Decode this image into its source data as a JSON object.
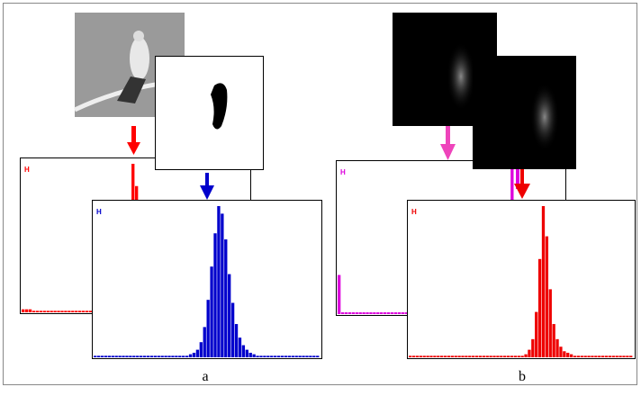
{
  "panels": [
    {
      "caption": "a",
      "histograms": [
        {
          "label": "H",
          "color": "#ff0000",
          "values": [
            2,
            2,
            2,
            1,
            1,
            1,
            1,
            1,
            1,
            1,
            1,
            1,
            1,
            1,
            1,
            1,
            1,
            1,
            1,
            1,
            1,
            1,
            1,
            1,
            2,
            3,
            5,
            10,
            20,
            35,
            70,
            100,
            85,
            50,
            25,
            12,
            6,
            3,
            2,
            1,
            1,
            1,
            1,
            1,
            1,
            1,
            1,
            1,
            1,
            1,
            1,
            1,
            1,
            1,
            1,
            1,
            1,
            1,
            1,
            1,
            1,
            1,
            1,
            1
          ]
        },
        {
          "label": "H",
          "color": "#0000cc",
          "values": [
            1,
            1,
            1,
            1,
            1,
            1,
            1,
            1,
            1,
            1,
            1,
            1,
            1,
            1,
            1,
            1,
            1,
            1,
            1,
            1,
            1,
            1,
            1,
            1,
            1,
            1,
            1,
            2,
            3,
            5,
            10,
            20,
            38,
            60,
            82,
            100,
            95,
            78,
            55,
            36,
            22,
            13,
            8,
            5,
            3,
            2,
            1,
            1,
            1,
            1,
            1,
            1,
            1,
            1,
            1,
            1,
            1,
            1,
            1,
            1,
            1,
            1,
            1,
            1
          ]
        }
      ]
    },
    {
      "caption": "b",
      "histograms": [
        {
          "label": "H",
          "color": "#dd00dd",
          "values": [
            22,
            1,
            1,
            1,
            1,
            1,
            1,
            1,
            1,
            1,
            1,
            1,
            1,
            1,
            1,
            1,
            1,
            1,
            1,
            1,
            1,
            1,
            1,
            1,
            1,
            1,
            1,
            1,
            1,
            1,
            1,
            1,
            1,
            1,
            1,
            1,
            1,
            1,
            1,
            1,
            1,
            1,
            1,
            1,
            1,
            1,
            1,
            1,
            10,
            83,
            20,
            1,
            1,
            1,
            1,
            1,
            1,
            1,
            1,
            1,
            1,
            1,
            1,
            1
          ]
        },
        {
          "label": "H",
          "color": "#ee0000",
          "values": [
            1,
            1,
            1,
            1,
            1,
            1,
            1,
            1,
            1,
            1,
            1,
            1,
            1,
            1,
            1,
            1,
            1,
            1,
            1,
            1,
            1,
            1,
            1,
            1,
            1,
            1,
            1,
            1,
            1,
            1,
            1,
            1,
            1,
            2,
            5,
            12,
            30,
            65,
            100,
            80,
            45,
            22,
            12,
            7,
            4,
            3,
            2,
            1,
            1,
            1,
            1,
            1,
            1,
            1,
            1,
            1,
            1,
            1,
            1,
            1,
            1,
            1,
            1,
            1
          ]
        }
      ]
    }
  ]
}
